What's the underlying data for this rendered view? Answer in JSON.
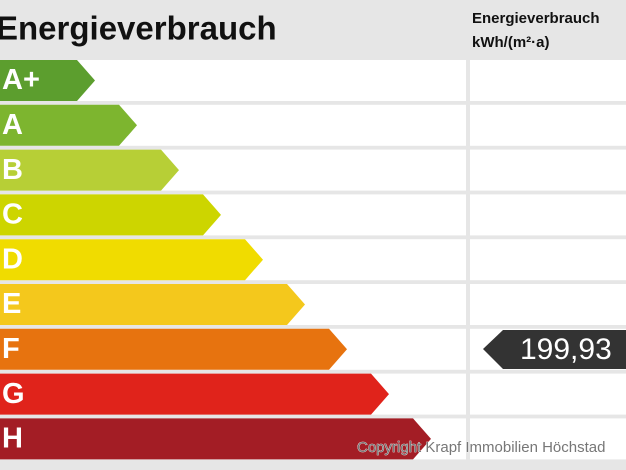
{
  "header": {
    "title": "Energieverbrauch",
    "column_title": "Energieverbrauch",
    "column_unit": "kWh/(m²·a)"
  },
  "classes": [
    {
      "label": "A+",
      "color": "#5c9e2e"
    },
    {
      "label": "A",
      "color": "#7db52f"
    },
    {
      "label": "B",
      "color": "#b7cf36"
    },
    {
      "label": "C",
      "color": "#cdd500"
    },
    {
      "label": "D",
      "color": "#f0dc00"
    },
    {
      "label": "E",
      "color": "#f4c81c"
    },
    {
      "label": "F",
      "color": "#e7730f"
    },
    {
      "label": "G",
      "color": "#e0231b"
    },
    {
      "label": "H",
      "color": "#a31d25"
    }
  ],
  "marker": {
    "value_label": "199,93"
  },
  "copyright": "Copyright Krapf Immobilien Höchstad"
}
